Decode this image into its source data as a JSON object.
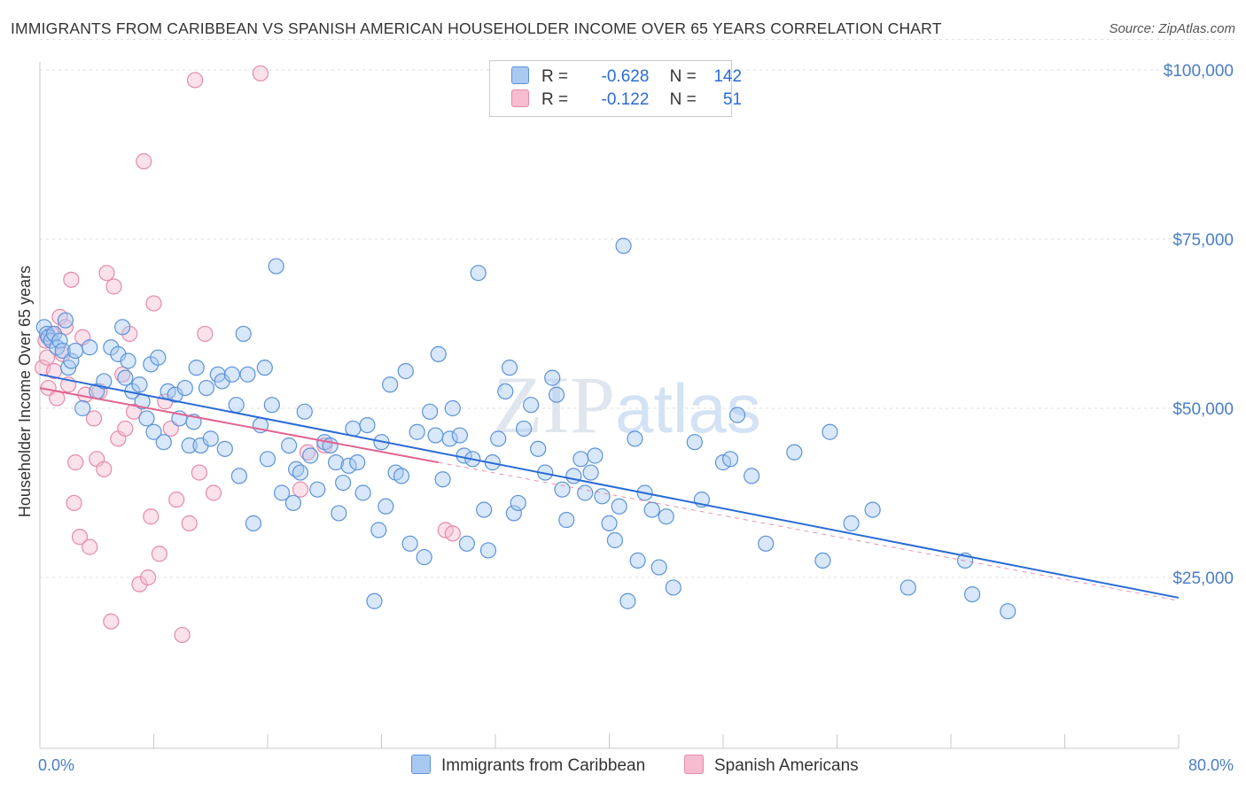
{
  "title": "IMMIGRANTS FROM CARIBBEAN VS SPANISH AMERICAN HOUSEHOLDER INCOME OVER 65 YEARS CORRELATION CHART",
  "source": "Source: ZipAtlas.com",
  "watermark": {
    "zip": "ZIP",
    "atlas": "atlas"
  },
  "colors": {
    "blue_fill": "#a9c9f1",
    "blue_stroke": "#5b93d9",
    "blue_line": "#2a6bd6",
    "pink_fill": "#f6bcd0",
    "pink_stroke": "#e58aa9",
    "pink_line": "#e0648f",
    "grid": "#dcdcdc",
    "tick_text": "#4a7ec8"
  },
  "legend": {
    "rows": [
      {
        "r_label": "R =",
        "r_value": "-0.628",
        "n_label": "N =",
        "n_value": "142"
      },
      {
        "r_label": "R =",
        "r_value": "-0.122",
        "n_label": "N =",
        "n_value": "51"
      }
    ]
  },
  "chart_data": {
    "type": "scatter",
    "ylabel": "Householder Income Over 65 years",
    "xlabel": "",
    "xlim": [
      0,
      80
    ],
    "ylim": [
      0,
      105000
    ],
    "x_tick_labels": {
      "left": "0.0%",
      "right": "80.0%"
    },
    "y_ticks": [
      {
        "value": 25000,
        "label": "$25,000"
      },
      {
        "value": 50000,
        "label": "$50,000"
      },
      {
        "value": 75000,
        "label": "$75,000"
      },
      {
        "value": 100000,
        "label": "$100,000"
      }
    ],
    "grid": true,
    "legend_placement": "bottom",
    "series": [
      {
        "name": "Immigrants from Caribbean",
        "color": "#5b93d9",
        "trend": {
          "x": [
            0,
            80
          ],
          "y": [
            55000,
            22000
          ]
        },
        "points": [
          [
            0.3,
            62000
          ],
          [
            0.5,
            61000
          ],
          [
            0.6,
            60500
          ],
          [
            0.8,
            60000
          ],
          [
            1.0,
            61000
          ],
          [
            1.2,
            59000
          ],
          [
            1.4,
            60000
          ],
          [
            1.6,
            58500
          ],
          [
            1.8,
            63000
          ],
          [
            2.0,
            56000
          ],
          [
            2.2,
            57000
          ],
          [
            2.5,
            58500
          ],
          [
            3.0,
            50000
          ],
          [
            3.5,
            59000
          ],
          [
            4.0,
            52500
          ],
          [
            4.5,
            54000
          ],
          [
            5.0,
            59000
          ],
          [
            5.5,
            58000
          ],
          [
            5.8,
            62000
          ],
          [
            6.0,
            54500
          ],
          [
            6.2,
            57000
          ],
          [
            6.5,
            52500
          ],
          [
            7.0,
            53500
          ],
          [
            7.2,
            51000
          ],
          [
            7.5,
            48500
          ],
          [
            7.8,
            56500
          ],
          [
            8.0,
            46500
          ],
          [
            8.3,
            57500
          ],
          [
            8.7,
            45000
          ],
          [
            9.0,
            52500
          ],
          [
            9.5,
            52000
          ],
          [
            9.8,
            48500
          ],
          [
            10.2,
            53000
          ],
          [
            10.5,
            44500
          ],
          [
            10.8,
            48000
          ],
          [
            11.0,
            56000
          ],
          [
            11.3,
            44500
          ],
          [
            11.7,
            53000
          ],
          [
            12.0,
            45500
          ],
          [
            12.5,
            55000
          ],
          [
            12.8,
            54000
          ],
          [
            13.0,
            44000
          ],
          [
            13.5,
            55000
          ],
          [
            13.8,
            50500
          ],
          [
            14.0,
            40000
          ],
          [
            14.3,
            61000
          ],
          [
            14.6,
            55000
          ],
          [
            15.0,
            33000
          ],
          [
            15.5,
            47500
          ],
          [
            15.8,
            56000
          ],
          [
            16.0,
            42500
          ],
          [
            16.3,
            50500
          ],
          [
            16.6,
            71000
          ],
          [
            17.0,
            37500
          ],
          [
            17.5,
            44500
          ],
          [
            17.8,
            36000
          ],
          [
            18.0,
            41000
          ],
          [
            18.3,
            40500
          ],
          [
            18.6,
            49500
          ],
          [
            19.0,
            43000
          ],
          [
            19.5,
            38000
          ],
          [
            20.0,
            45000
          ],
          [
            20.4,
            44500
          ],
          [
            20.8,
            42000
          ],
          [
            21.0,
            34500
          ],
          [
            21.3,
            39000
          ],
          [
            21.7,
            41500
          ],
          [
            22.0,
            47000
          ],
          [
            22.3,
            42000
          ],
          [
            22.7,
            37500
          ],
          [
            23.0,
            47500
          ],
          [
            23.5,
            21500
          ],
          [
            23.8,
            32000
          ],
          [
            24.0,
            45000
          ],
          [
            24.3,
            35500
          ],
          [
            24.6,
            53500
          ],
          [
            25.0,
            40500
          ],
          [
            25.4,
            40000
          ],
          [
            25.7,
            55500
          ],
          [
            26.0,
            30000
          ],
          [
            26.5,
            46500
          ],
          [
            27.0,
            28000
          ],
          [
            27.4,
            49500
          ],
          [
            27.8,
            46000
          ],
          [
            28.0,
            58000
          ],
          [
            28.3,
            39500
          ],
          [
            28.8,
            45500
          ],
          [
            29.0,
            50000
          ],
          [
            29.5,
            46000
          ],
          [
            29.8,
            43000
          ],
          [
            30.0,
            30000
          ],
          [
            30.4,
            42500
          ],
          [
            30.8,
            70000
          ],
          [
            31.2,
            35000
          ],
          [
            31.5,
            29000
          ],
          [
            31.8,
            42000
          ],
          [
            32.2,
            45500
          ],
          [
            32.7,
            52500
          ],
          [
            33.0,
            56000
          ],
          [
            33.3,
            34500
          ],
          [
            33.6,
            36000
          ],
          [
            34.0,
            47000
          ],
          [
            34.5,
            50500
          ],
          [
            35.0,
            44000
          ],
          [
            35.5,
            40500
          ],
          [
            36.0,
            54500
          ],
          [
            36.3,
            52000
          ],
          [
            36.7,
            38000
          ],
          [
            37.0,
            33500
          ],
          [
            37.5,
            40000
          ],
          [
            38.0,
            42500
          ],
          [
            38.3,
            37500
          ],
          [
            38.7,
            40500
          ],
          [
            39.0,
            43000
          ],
          [
            39.5,
            37000
          ],
          [
            40.0,
            33000
          ],
          [
            40.4,
            30500
          ],
          [
            40.7,
            35500
          ],
          [
            41.0,
            74000
          ],
          [
            41.3,
            21500
          ],
          [
            41.8,
            45500
          ],
          [
            42.0,
            27500
          ],
          [
            42.5,
            37500
          ],
          [
            43.0,
            35000
          ],
          [
            43.5,
            26500
          ],
          [
            44.0,
            34000
          ],
          [
            44.5,
            23500
          ],
          [
            46.0,
            45000
          ],
          [
            46.5,
            36500
          ],
          [
            48.0,
            42000
          ],
          [
            48.5,
            42500
          ],
          [
            49.0,
            49000
          ],
          [
            50.0,
            40000
          ],
          [
            51.0,
            30000
          ],
          [
            53.0,
            43500
          ],
          [
            55.0,
            27500
          ],
          [
            55.5,
            46500
          ],
          [
            57.0,
            33000
          ],
          [
            58.5,
            35000
          ],
          [
            61.0,
            23500
          ],
          [
            65.0,
            27500
          ],
          [
            65.5,
            22500
          ],
          [
            68.0,
            20000
          ]
        ]
      },
      {
        "name": "Spanish Americans",
        "color": "#e58aa9",
        "trend": {
          "x": [
            0,
            28
          ],
          "y": [
            53000,
            42000
          ]
        },
        "points": [
          [
            0.2,
            56000
          ],
          [
            0.4,
            60000
          ],
          [
            0.5,
            57500
          ],
          [
            0.6,
            53000
          ],
          [
            0.8,
            61000
          ],
          [
            1.0,
            55500
          ],
          [
            1.2,
            51500
          ],
          [
            1.4,
            63500
          ],
          [
            1.6,
            58000
          ],
          [
            1.8,
            62000
          ],
          [
            2.0,
            53500
          ],
          [
            2.2,
            69000
          ],
          [
            2.4,
            36000
          ],
          [
            2.5,
            42000
          ],
          [
            2.8,
            31000
          ],
          [
            3.0,
            60500
          ],
          [
            3.2,
            52000
          ],
          [
            3.5,
            29500
          ],
          [
            3.8,
            48500
          ],
          [
            4.0,
            42500
          ],
          [
            4.2,
            52500
          ],
          [
            4.5,
            41000
          ],
          [
            4.7,
            70000
          ],
          [
            5.0,
            18500
          ],
          [
            5.2,
            68000
          ],
          [
            5.5,
            45500
          ],
          [
            5.8,
            55000
          ],
          [
            6.0,
            47000
          ],
          [
            6.3,
            61000
          ],
          [
            6.6,
            49500
          ],
          [
            7.0,
            24000
          ],
          [
            7.3,
            86500
          ],
          [
            7.6,
            25000
          ],
          [
            7.8,
            34000
          ],
          [
            8.0,
            65500
          ],
          [
            8.4,
            28500
          ],
          [
            8.8,
            51000
          ],
          [
            9.2,
            47000
          ],
          [
            9.6,
            36500
          ],
          [
            10.0,
            16500
          ],
          [
            10.5,
            33000
          ],
          [
            10.9,
            98500
          ],
          [
            11.2,
            40500
          ],
          [
            11.6,
            61000
          ],
          [
            12.2,
            37500
          ],
          [
            15.5,
            99500
          ],
          [
            18.3,
            38000
          ],
          [
            18.8,
            43500
          ],
          [
            20.0,
            44500
          ],
          [
            28.5,
            32000
          ],
          [
            29.0,
            31500
          ]
        ]
      }
    ]
  }
}
